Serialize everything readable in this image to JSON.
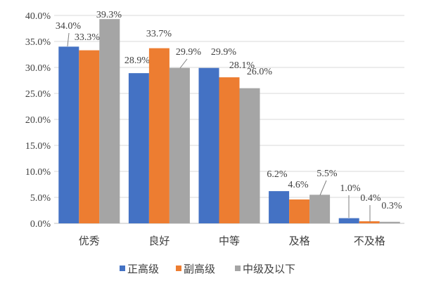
{
  "chart_data": {
    "type": "bar",
    "categories": [
      "优秀",
      "良好",
      "中等",
      "及格",
      "不及格"
    ],
    "series": [
      {
        "name": "正高级",
        "color": "#4472C4",
        "values": [
          34.0,
          28.9,
          29.9,
          6.2,
          1.0
        ]
      },
      {
        "name": "副高级",
        "color": "#ED7D31",
        "values": [
          33.3,
          33.7,
          28.1,
          4.6,
          0.4
        ]
      },
      {
        "name": "中级及以下",
        "color": "#A5A5A5",
        "values": [
          39.3,
          29.9,
          26.0,
          5.5,
          0.3
        ]
      }
    ],
    "data_labels": [
      [
        "34.0%",
        "28.9%",
        "29.9%",
        "6.2%",
        "1.0%"
      ],
      [
        "33.3%",
        "33.7%",
        "28.1%",
        "4.6%",
        "0.4%"
      ],
      [
        "39.3%",
        "29.9%",
        "26.0%",
        "5.5%",
        "0.3%"
      ]
    ],
    "yticks": [
      "0.0%",
      "5.0%",
      "10.0%",
      "15.0%",
      "20.0%",
      "25.0%",
      "30.0%",
      "35.0%",
      "40.0%"
    ],
    "ylim": [
      0,
      40
    ],
    "ystep": 5,
    "grid": true,
    "legend_position": "bottom",
    "title": "",
    "xlabel": "",
    "ylabel": ""
  }
}
